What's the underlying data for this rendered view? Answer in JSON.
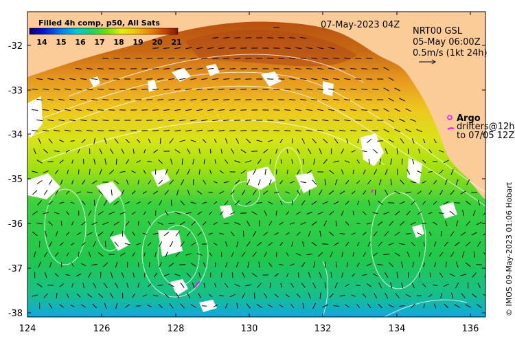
{
  "colorbar": {
    "title": "Filled 4h comp, p50, All Sats",
    "ticks": [
      "14",
      "15",
      "16",
      "17",
      "18",
      "19",
      "20",
      "21"
    ],
    "colors": [
      "#00007a",
      "#0010d0",
      "#0070f0",
      "#00c0e0",
      "#10d0a0",
      "#30d040",
      "#a0e000",
      "#f0f000",
      "#f0c000",
      "#e08000",
      "#c84000",
      "#901010"
    ]
  },
  "date_label": "07-May-2023 04Z",
  "info": {
    "line1": "NRT00 GSL",
    "line2": "05-May 06:00Z",
    "line3": "0.5m/s (1kt 24h)"
  },
  "argo_label": "Argo",
  "drifter_line1": "drifters@12h",
  "drifter_line2": "to 07/05 12Z",
  "credit": "© IMOS 09-May-2023 01:06 Hobart",
  "x_ticks": [
    "124",
    "126",
    "128",
    "130",
    "132",
    "134",
    "136"
  ],
  "y_ticks": [
    "-32",
    "-33",
    "-34",
    "-35",
    "-36",
    "-37",
    "-38"
  ],
  "colors": {
    "land": "#fccc98",
    "cloud": "#ffffff",
    "marker": "#ff00ff"
  }
}
